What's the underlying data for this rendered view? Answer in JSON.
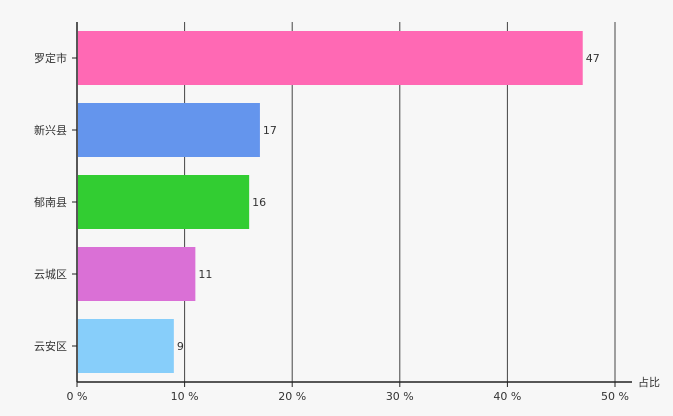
{
  "chart_data": {
    "type": "bar",
    "orientation": "horizontal",
    "categories": [
      "罗定市",
      "新兴县",
      "郁南县",
      "云城区",
      "云安区"
    ],
    "values": [
      47,
      17,
      16,
      11,
      9
    ],
    "colors": [
      "#ff69b4",
      "#6495ed",
      "#32cd32",
      "#da70d6",
      "#87cefa"
    ],
    "xlabel": "占比",
    "xlim": [
      0,
      50
    ],
    "x_ticks": [
      "0 %",
      "10 %",
      "20 %",
      "30 %",
      "40 %",
      "50 %"
    ],
    "x_tick_values": [
      0,
      10,
      20,
      30,
      40,
      50
    ],
    "grid": "vertical",
    "data_labels": true
  }
}
